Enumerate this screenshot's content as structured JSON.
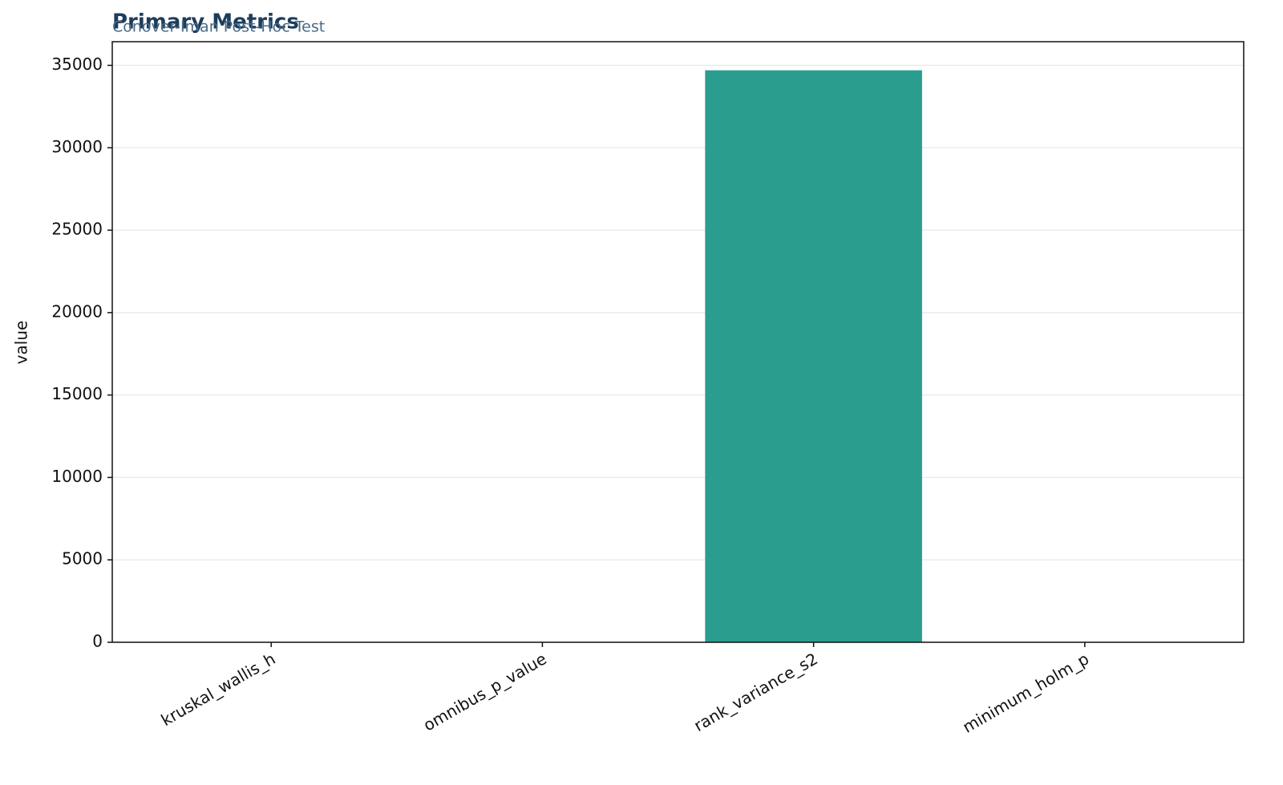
{
  "chart_data": {
    "type": "bar",
    "title": "Primary Metrics",
    "subtitle": "Conover-Iman Post-Hoc Test",
    "y_label": "value",
    "categories": [
      "kruskal_wallis_h",
      "omnibus_p_value",
      "rank_variance_s2",
      "minimum_holm_p"
    ],
    "values": [
      0,
      0,
      34700,
      0
    ],
    "color": "#2a9d8f",
    "ylim": [
      0,
      36435
    ],
    "yticks": [
      0,
      5000,
      10000,
      15000,
      20000,
      25000,
      30000,
      35000
    ],
    "grid": true
  }
}
